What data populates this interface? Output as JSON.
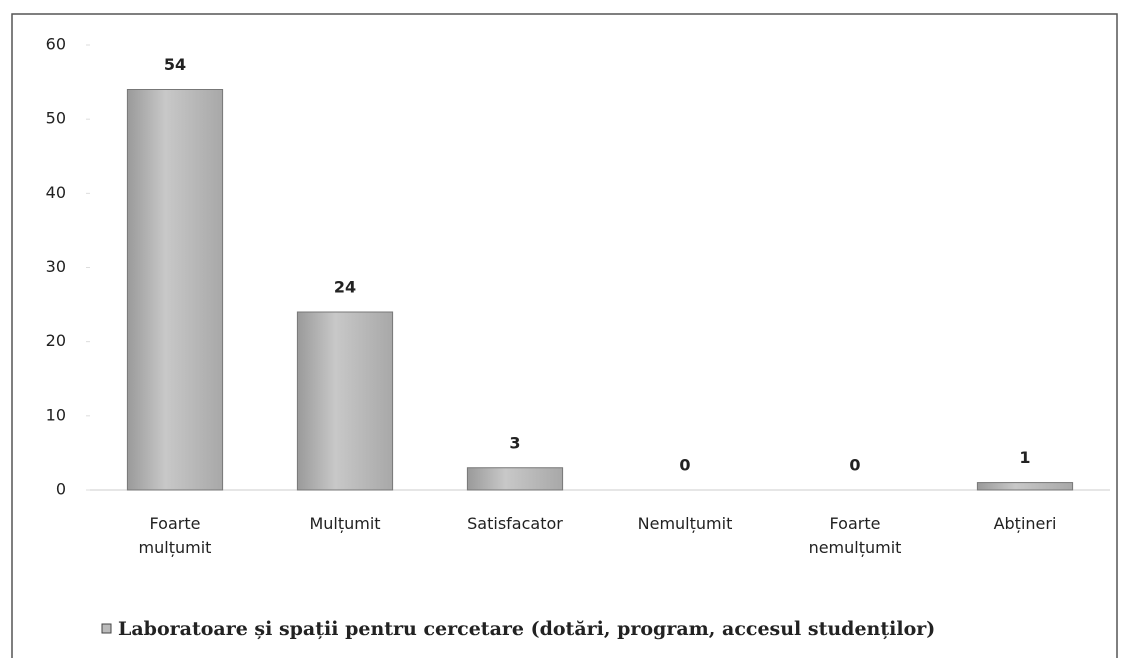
{
  "chart_data": {
    "type": "bar",
    "categories": [
      "Foarte mulțumit",
      "Mulțumit",
      "Satisfacator",
      "Nemulțumit",
      "Foarte nemulțumit",
      "Abțineri"
    ],
    "series": [
      {
        "name": "Laboratoare și spații pentru cercetare (dotări, program, accesul studenților)",
        "color": "#b8b8b8",
        "values": [
          54,
          24,
          3,
          0,
          0,
          1
        ]
      }
    ],
    "ylim": [
      0,
      60
    ],
    "yticks": [
      0,
      10,
      20,
      30,
      40,
      50,
      60
    ],
    "grid": false,
    "legend": "bottom"
  }
}
